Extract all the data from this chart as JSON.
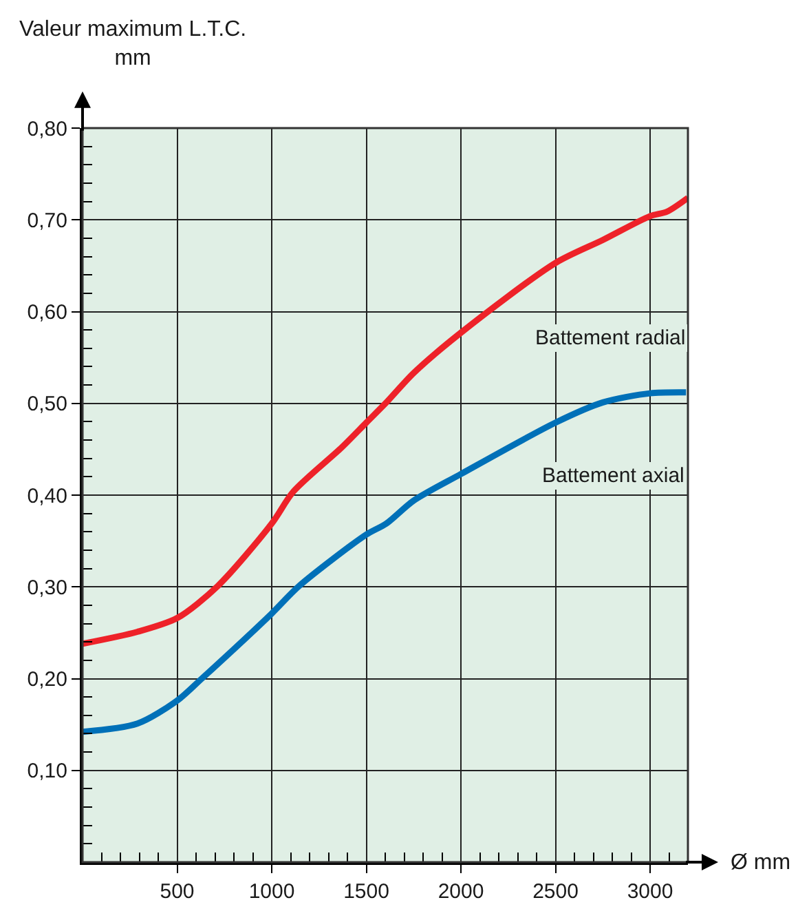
{
  "chart_data": {
    "type": "line",
    "xlabel": "Ø mm",
    "ylabel": "Valeur maximum L.T.C.\nmm",
    "xlim": [
      0,
      3200
    ],
    "ylim": [
      0,
      0.8
    ],
    "xticks": [
      {
        "value": 0,
        "label": null
      },
      {
        "value": 100,
        "label": null
      },
      {
        "value": 200,
        "label": null
      },
      {
        "value": 300,
        "label": null
      },
      {
        "value": 400,
        "label": null
      },
      500,
      {
        "value": 600,
        "label": null
      },
      {
        "value": 700,
        "label": null
      },
      {
        "value": 800,
        "label": null
      },
      {
        "value": 900,
        "label": null
      },
      1000,
      {
        "value": 1100,
        "label": null
      },
      {
        "value": 1200,
        "label": null
      },
      {
        "value": 1300,
        "label": null
      },
      {
        "value": 1400,
        "label": null
      },
      1500,
      {
        "value": 1600,
        "label": null
      },
      {
        "value": 1700,
        "label": null
      },
      {
        "value": 1800,
        "label": null
      },
      {
        "value": 1900,
        "label": null
      },
      2000,
      {
        "value": 2100,
        "label": null
      },
      {
        "value": 2200,
        "label": null
      },
      {
        "value": 2300,
        "label": null
      },
      {
        "value": 2400,
        "label": null
      },
      2500,
      {
        "value": 2600,
        "label": null
      },
      {
        "value": 2700,
        "label": null
      },
      {
        "value": 2800,
        "label": null
      },
      {
        "value": 2900,
        "label": null
      },
      3000,
      {
        "value": 3100,
        "label": null
      }
    ],
    "yticks": [
      {
        "value": 0,
        "label": null
      },
      {
        "value": 0.02,
        "label": null
      },
      {
        "value": 0.04,
        "label": null
      },
      {
        "value": 0.06,
        "label": null
      },
      {
        "value": 0.08,
        "label": null
      },
      {
        "value": 0.1,
        "label": "0,10"
      },
      {
        "value": 0.12,
        "label": null
      },
      {
        "value": 0.14,
        "label": null
      },
      {
        "value": 0.16,
        "label": null
      },
      {
        "value": 0.18,
        "label": null
      },
      {
        "value": 0.2,
        "label": "0,20"
      },
      {
        "value": 0.22,
        "label": null
      },
      {
        "value": 0.24,
        "label": null
      },
      {
        "value": 0.26,
        "label": null
      },
      {
        "value": 0.28,
        "label": null
      },
      {
        "value": 0.3,
        "label": "0,30"
      },
      {
        "value": 0.32,
        "label": null
      },
      {
        "value": 0.34,
        "label": null
      },
      {
        "value": 0.36,
        "label": null
      },
      {
        "value": 0.38,
        "label": null
      },
      {
        "value": 0.4,
        "label": "0,40"
      },
      {
        "value": 0.42,
        "label": null
      },
      {
        "value": 0.44,
        "label": null
      },
      {
        "value": 0.46,
        "label": null
      },
      {
        "value": 0.48,
        "label": null
      },
      {
        "value": 0.5,
        "label": "0,50"
      },
      {
        "value": 0.52,
        "label": null
      },
      {
        "value": 0.54,
        "label": null
      },
      {
        "value": 0.56,
        "label": null
      },
      {
        "value": 0.58,
        "label": null
      },
      {
        "value": 0.6,
        "label": "0,60"
      },
      {
        "value": 0.62,
        "label": null
      },
      {
        "value": 0.64,
        "label": null
      },
      {
        "value": 0.66,
        "label": null
      },
      {
        "value": 0.68,
        "label": null
      },
      {
        "value": 0.7,
        "label": "0,70"
      },
      {
        "value": 0.72,
        "label": null
      },
      {
        "value": 0.74,
        "label": null
      },
      {
        "value": 0.76,
        "label": null
      },
      {
        "value": 0.78,
        "label": null
      },
      {
        "value": 0.8,
        "label": "0,80"
      }
    ],
    "grid": true,
    "legend": false,
    "marker": "none",
    "line_style": "solid",
    "series": [
      {
        "name": "Battement radial",
        "color": "#ee2229",
        "x": [
          0,
          290,
          500,
          715,
          1000,
          1115,
          1370,
          1500,
          1606,
          1750,
          2000,
          2500,
          2750,
          3000,
          3090,
          3200
        ],
        "values": [
          0.238,
          0.251,
          0.266,
          0.301,
          0.369,
          0.404,
          0.452,
          0.479,
          0.501,
          0.533,
          0.577,
          0.653,
          0.678,
          0.704,
          0.709,
          0.724
        ]
      },
      {
        "name": "Battement axial",
        "color": "#0070b8",
        "x": [
          0,
          290,
          500,
          630,
          1000,
          1145,
          1500,
          1606,
          1750,
          2000,
          2500,
          2750,
          3000,
          3190
        ],
        "values": [
          0.142,
          0.151,
          0.176,
          0.2,
          0.271,
          0.301,
          0.357,
          0.369,
          0.394,
          0.423,
          0.479,
          0.501,
          0.511,
          0.512
        ]
      }
    ]
  }
}
